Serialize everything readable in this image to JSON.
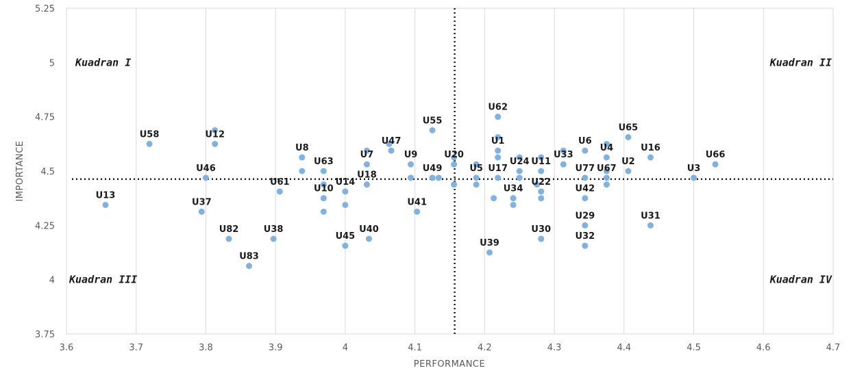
{
  "chart_data": {
    "type": "scatter",
    "xlabel": "PERFORMANCE",
    "ylabel": "IMPORTANCE",
    "xlim": [
      3.6,
      4.7
    ],
    "ylim": [
      3.75,
      5.25
    ],
    "x_ticks": [
      "3.6",
      "3.7",
      "3.8",
      "3.9",
      "4",
      "4.1",
      "4.2",
      "4.3",
      "4.4",
      "4.5",
      "4.6",
      "4.7"
    ],
    "y_ticks": [
      "3.75",
      "4",
      "4.25",
      "4.5",
      "4.75",
      "5",
      "5.25"
    ],
    "grid": "vertical gridlines only",
    "marker_color": "#7eb2e4",
    "reference_lines": {
      "x": 4.157,
      "y": 4.463,
      "style": "dotted",
      "color": "#1a1a1a"
    },
    "quadrant_labels": [
      {
        "text": "Kuadran I",
        "position": "top-left"
      },
      {
        "text": "Kuadran II",
        "position": "top-right"
      },
      {
        "text": "Kuadran III",
        "position": "bottom-left"
      },
      {
        "text": "Kuadran IV",
        "position": "bottom-right"
      }
    ],
    "labeled_points": [
      {
        "label": "U13",
        "x": 3.656,
        "y": 4.344
      },
      {
        "label": "U58",
        "x": 3.719,
        "y": 4.625
      },
      {
        "label": "U12",
        "x": 3.813,
        "y": 4.625
      },
      {
        "label": "U46",
        "x": 3.8,
        "y": 4.469
      },
      {
        "label": "U37",
        "x": 3.794,
        "y": 4.313
      },
      {
        "label": "U82",
        "x": 3.833,
        "y": 4.188
      },
      {
        "label": "U83",
        "x": 3.862,
        "y": 4.063
      },
      {
        "label": "U38",
        "x": 3.897,
        "y": 4.188
      },
      {
        "label": "U61",
        "x": 3.906,
        "y": 4.406
      },
      {
        "label": "U8",
        "x": 3.938,
        "y": 4.563
      },
      {
        "label": "U63",
        "x": 3.969,
        "y": 4.5
      },
      {
        "label": "U10",
        "x": 3.969,
        "y": 4.375
      },
      {
        "label": "U14",
        "x": 4.0,
        "y": 4.406
      },
      {
        "label": "U45",
        "x": 4.0,
        "y": 4.156
      },
      {
        "label": "U40",
        "x": 4.034,
        "y": 4.188
      },
      {
        "label": "U18",
        "x": 4.031,
        "y": 4.438
      },
      {
        "label": "U7",
        "x": 4.031,
        "y": 4.531
      },
      {
        "label": "U47",
        "x": 4.066,
        "y": 4.594
      },
      {
        "label": "U9",
        "x": 4.094,
        "y": 4.531
      },
      {
        "label": "U41",
        "x": 4.103,
        "y": 4.313
      },
      {
        "label": "U55",
        "x": 4.125,
        "y": 4.688
      },
      {
        "label": "U49",
        "x": 4.125,
        "y": 4.469
      },
      {
        "label": "U20",
        "x": 4.156,
        "y": 4.531
      },
      {
        "label": "U5",
        "x": 4.188,
        "y": 4.469
      },
      {
        "label": "U39",
        "x": 4.207,
        "y": 4.125
      },
      {
        "label": "U62",
        "x": 4.219,
        "y": 4.75
      },
      {
        "label": "U1",
        "x": 4.219,
        "y": 4.594
      },
      {
        "label": "U17",
        "x": 4.219,
        "y": 4.469
      },
      {
        "label": "U34",
        "x": 4.241,
        "y": 4.375
      },
      {
        "label": "U24",
        "x": 4.25,
        "y": 4.5
      },
      {
        "label": "U11",
        "x": 4.281,
        "y": 4.5
      },
      {
        "label": "U22",
        "x": 4.281,
        "y": 4.406
      },
      {
        "label": "U30",
        "x": 4.281,
        "y": 4.188
      },
      {
        "label": "U33",
        "x": 4.313,
        "y": 4.531
      },
      {
        "label": "U6",
        "x": 4.344,
        "y": 4.594
      },
      {
        "label": "U77",
        "x": 4.344,
        "y": 4.469
      },
      {
        "label": "U42",
        "x": 4.344,
        "y": 4.375
      },
      {
        "label": "U29",
        "x": 4.344,
        "y": 4.25
      },
      {
        "label": "U32",
        "x": 4.344,
        "y": 4.156
      },
      {
        "label": "U4",
        "x": 4.375,
        "y": 4.563
      },
      {
        "label": "U67",
        "x": 4.375,
        "y": 4.469
      },
      {
        "label": "U2",
        "x": 4.406,
        "y": 4.5
      },
      {
        "label": "U65",
        "x": 4.406,
        "y": 4.656
      },
      {
        "label": "U16",
        "x": 4.438,
        "y": 4.563
      },
      {
        "label": "U31",
        "x": 4.438,
        "y": 4.25
      },
      {
        "label": "U3",
        "x": 4.5,
        "y": 4.469
      },
      {
        "label": "U66",
        "x": 4.531,
        "y": 4.531
      }
    ],
    "unlabeled_points": [
      {
        "x": 3.813,
        "y": 4.688
      },
      {
        "x": 3.938,
        "y": 4.5
      },
      {
        "x": 3.969,
        "y": 4.438
      },
      {
        "x": 3.969,
        "y": 4.313
      },
      {
        "x": 4.0,
        "y": 4.344
      },
      {
        "x": 4.031,
        "y": 4.594
      },
      {
        "x": 4.063,
        "y": 4.625
      },
      {
        "x": 4.094,
        "y": 4.469
      },
      {
        "x": 4.134,
        "y": 4.469
      },
      {
        "x": 4.156,
        "y": 4.563
      },
      {
        "x": 4.156,
        "y": 4.438
      },
      {
        "x": 4.188,
        "y": 4.531
      },
      {
        "x": 4.188,
        "y": 4.438
      },
      {
        "x": 4.213,
        "y": 4.375
      },
      {
        "x": 4.219,
        "y": 4.656
      },
      {
        "x": 4.219,
        "y": 4.563
      },
      {
        "x": 4.241,
        "y": 4.344
      },
      {
        "x": 4.25,
        "y": 4.563
      },
      {
        "x": 4.25,
        "y": 4.469
      },
      {
        "x": 4.275,
        "y": 4.438
      },
      {
        "x": 4.281,
        "y": 4.563
      },
      {
        "x": 4.281,
        "y": 4.375
      },
      {
        "x": 4.313,
        "y": 4.594
      },
      {
        "x": 4.375,
        "y": 4.625
      },
      {
        "x": 4.375,
        "y": 4.438
      },
      {
        "x": 4.375,
        "y": 4.5
      }
    ]
  }
}
